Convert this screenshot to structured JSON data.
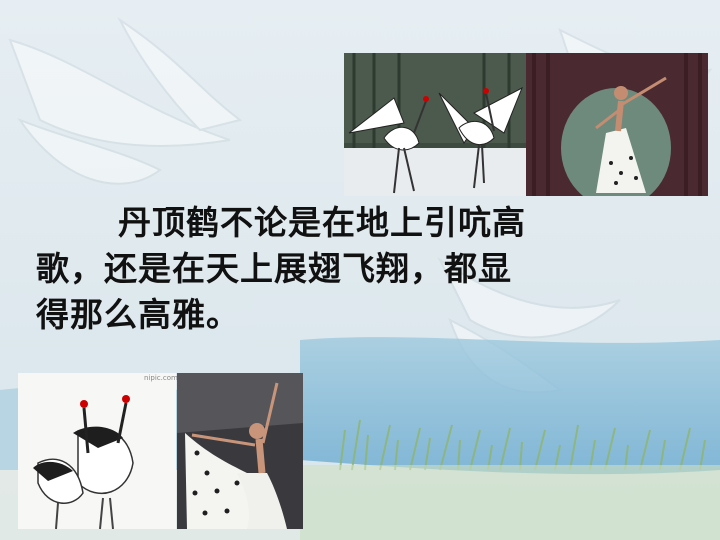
{
  "slide": {
    "lines": [
      "丹顶鹤不论是在地上引吭高",
      "歌，还是在天上展翅飞翔，都显",
      "得那么高雅。"
    ],
    "watermark": "nipic.com"
  },
  "colors": {
    "sky": "#dbe8f0",
    "water": "#7fb9d8",
    "grass": "#a9c98a",
    "text": "#111111"
  },
  "photos": [
    {
      "name": "cranes-dancing-photo",
      "icon": "crane-pair-icon"
    },
    {
      "name": "dancer-stage-photo",
      "icon": "dancer-icon"
    },
    {
      "name": "cranes-closeup-photo",
      "icon": "crane-pair-icon"
    },
    {
      "name": "dancer-costume-photo",
      "icon": "dancer-icon"
    }
  ]
}
